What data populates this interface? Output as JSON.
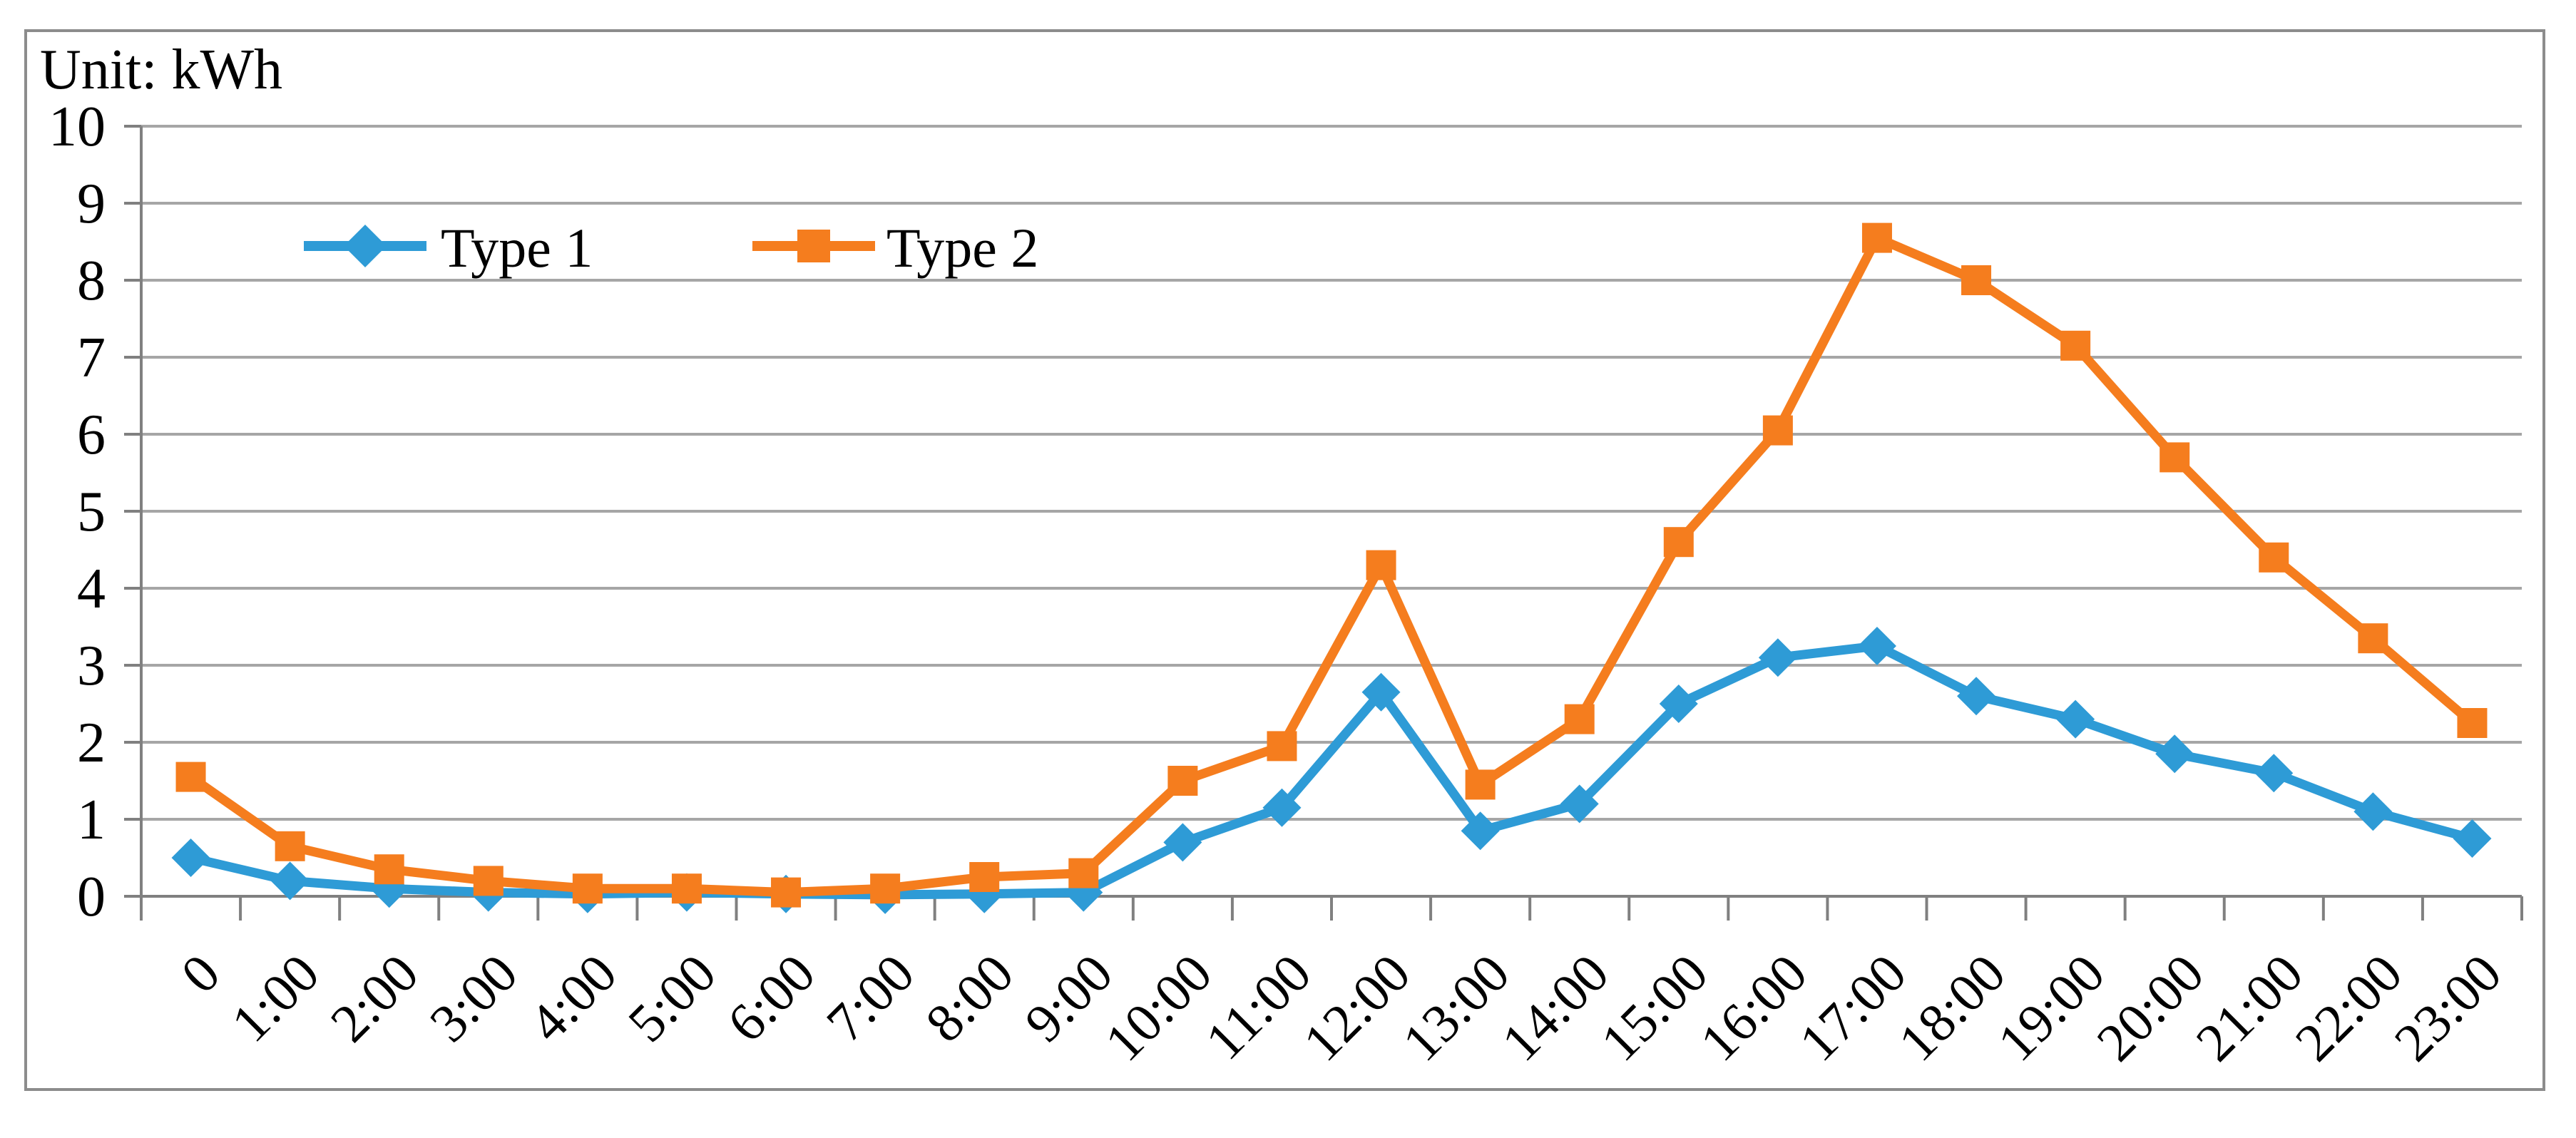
{
  "chart": {
    "unit_label": "Unit: kWh",
    "colors": {
      "type1": "#2E9BD6",
      "type2": "#F57D1E",
      "gridline": "#A6A6A6",
      "axis": "#808080",
      "border": "#8C8C8C",
      "text": "#000000",
      "background": "#FFFFFF"
    },
    "legend": {
      "items": [
        {
          "label": "Type 1",
          "marker": "diamond-icon",
          "color_key": "type1"
        },
        {
          "label": "Type 2",
          "marker": "square-icon",
          "color_key": "type2"
        }
      ],
      "position": "inside-top-left"
    }
  },
  "chart_data": {
    "type": "line",
    "title": "Unit: kWh",
    "xlabel": "",
    "ylabel": "",
    "ylim": [
      0,
      10
    ],
    "yticks": [
      "0",
      "1",
      "2",
      "3",
      "4",
      "5",
      "6",
      "7",
      "8",
      "9",
      "10"
    ],
    "grid": true,
    "legend_position": "inside-top-left",
    "categories": [
      "0",
      "1:00",
      "2:00",
      "3:00",
      "4:00",
      "5:00",
      "6:00",
      "7:00",
      "8:00",
      "9:00",
      "10:00",
      "11:00",
      "12:00",
      "13:00",
      "14:00",
      "15:00",
      "16:00",
      "17:00",
      "18:00",
      "19:00",
      "20:00",
      "21:00",
      "22:00",
      "23:00"
    ],
    "series": [
      {
        "name": "Type 1",
        "marker": "diamond",
        "color_key": "type1",
        "values": [
          0.5,
          0.2,
          0.1,
          0.05,
          0.03,
          0.05,
          0.03,
          0.02,
          0.03,
          0.05,
          0.7,
          1.15,
          2.65,
          0.85,
          1.2,
          2.5,
          3.1,
          3.25,
          2.6,
          2.3,
          1.85,
          1.6,
          1.1,
          0.75
        ]
      },
      {
        "name": "Type 2",
        "marker": "square",
        "color_key": "type2",
        "values": [
          1.55,
          0.65,
          0.35,
          0.2,
          0.1,
          0.1,
          0.05,
          0.1,
          0.25,
          0.3,
          1.5,
          1.95,
          4.3,
          1.45,
          2.3,
          4.6,
          6.05,
          8.55,
          8.0,
          7.15,
          5.7,
          4.4,
          3.35,
          2.25
        ]
      }
    ]
  }
}
